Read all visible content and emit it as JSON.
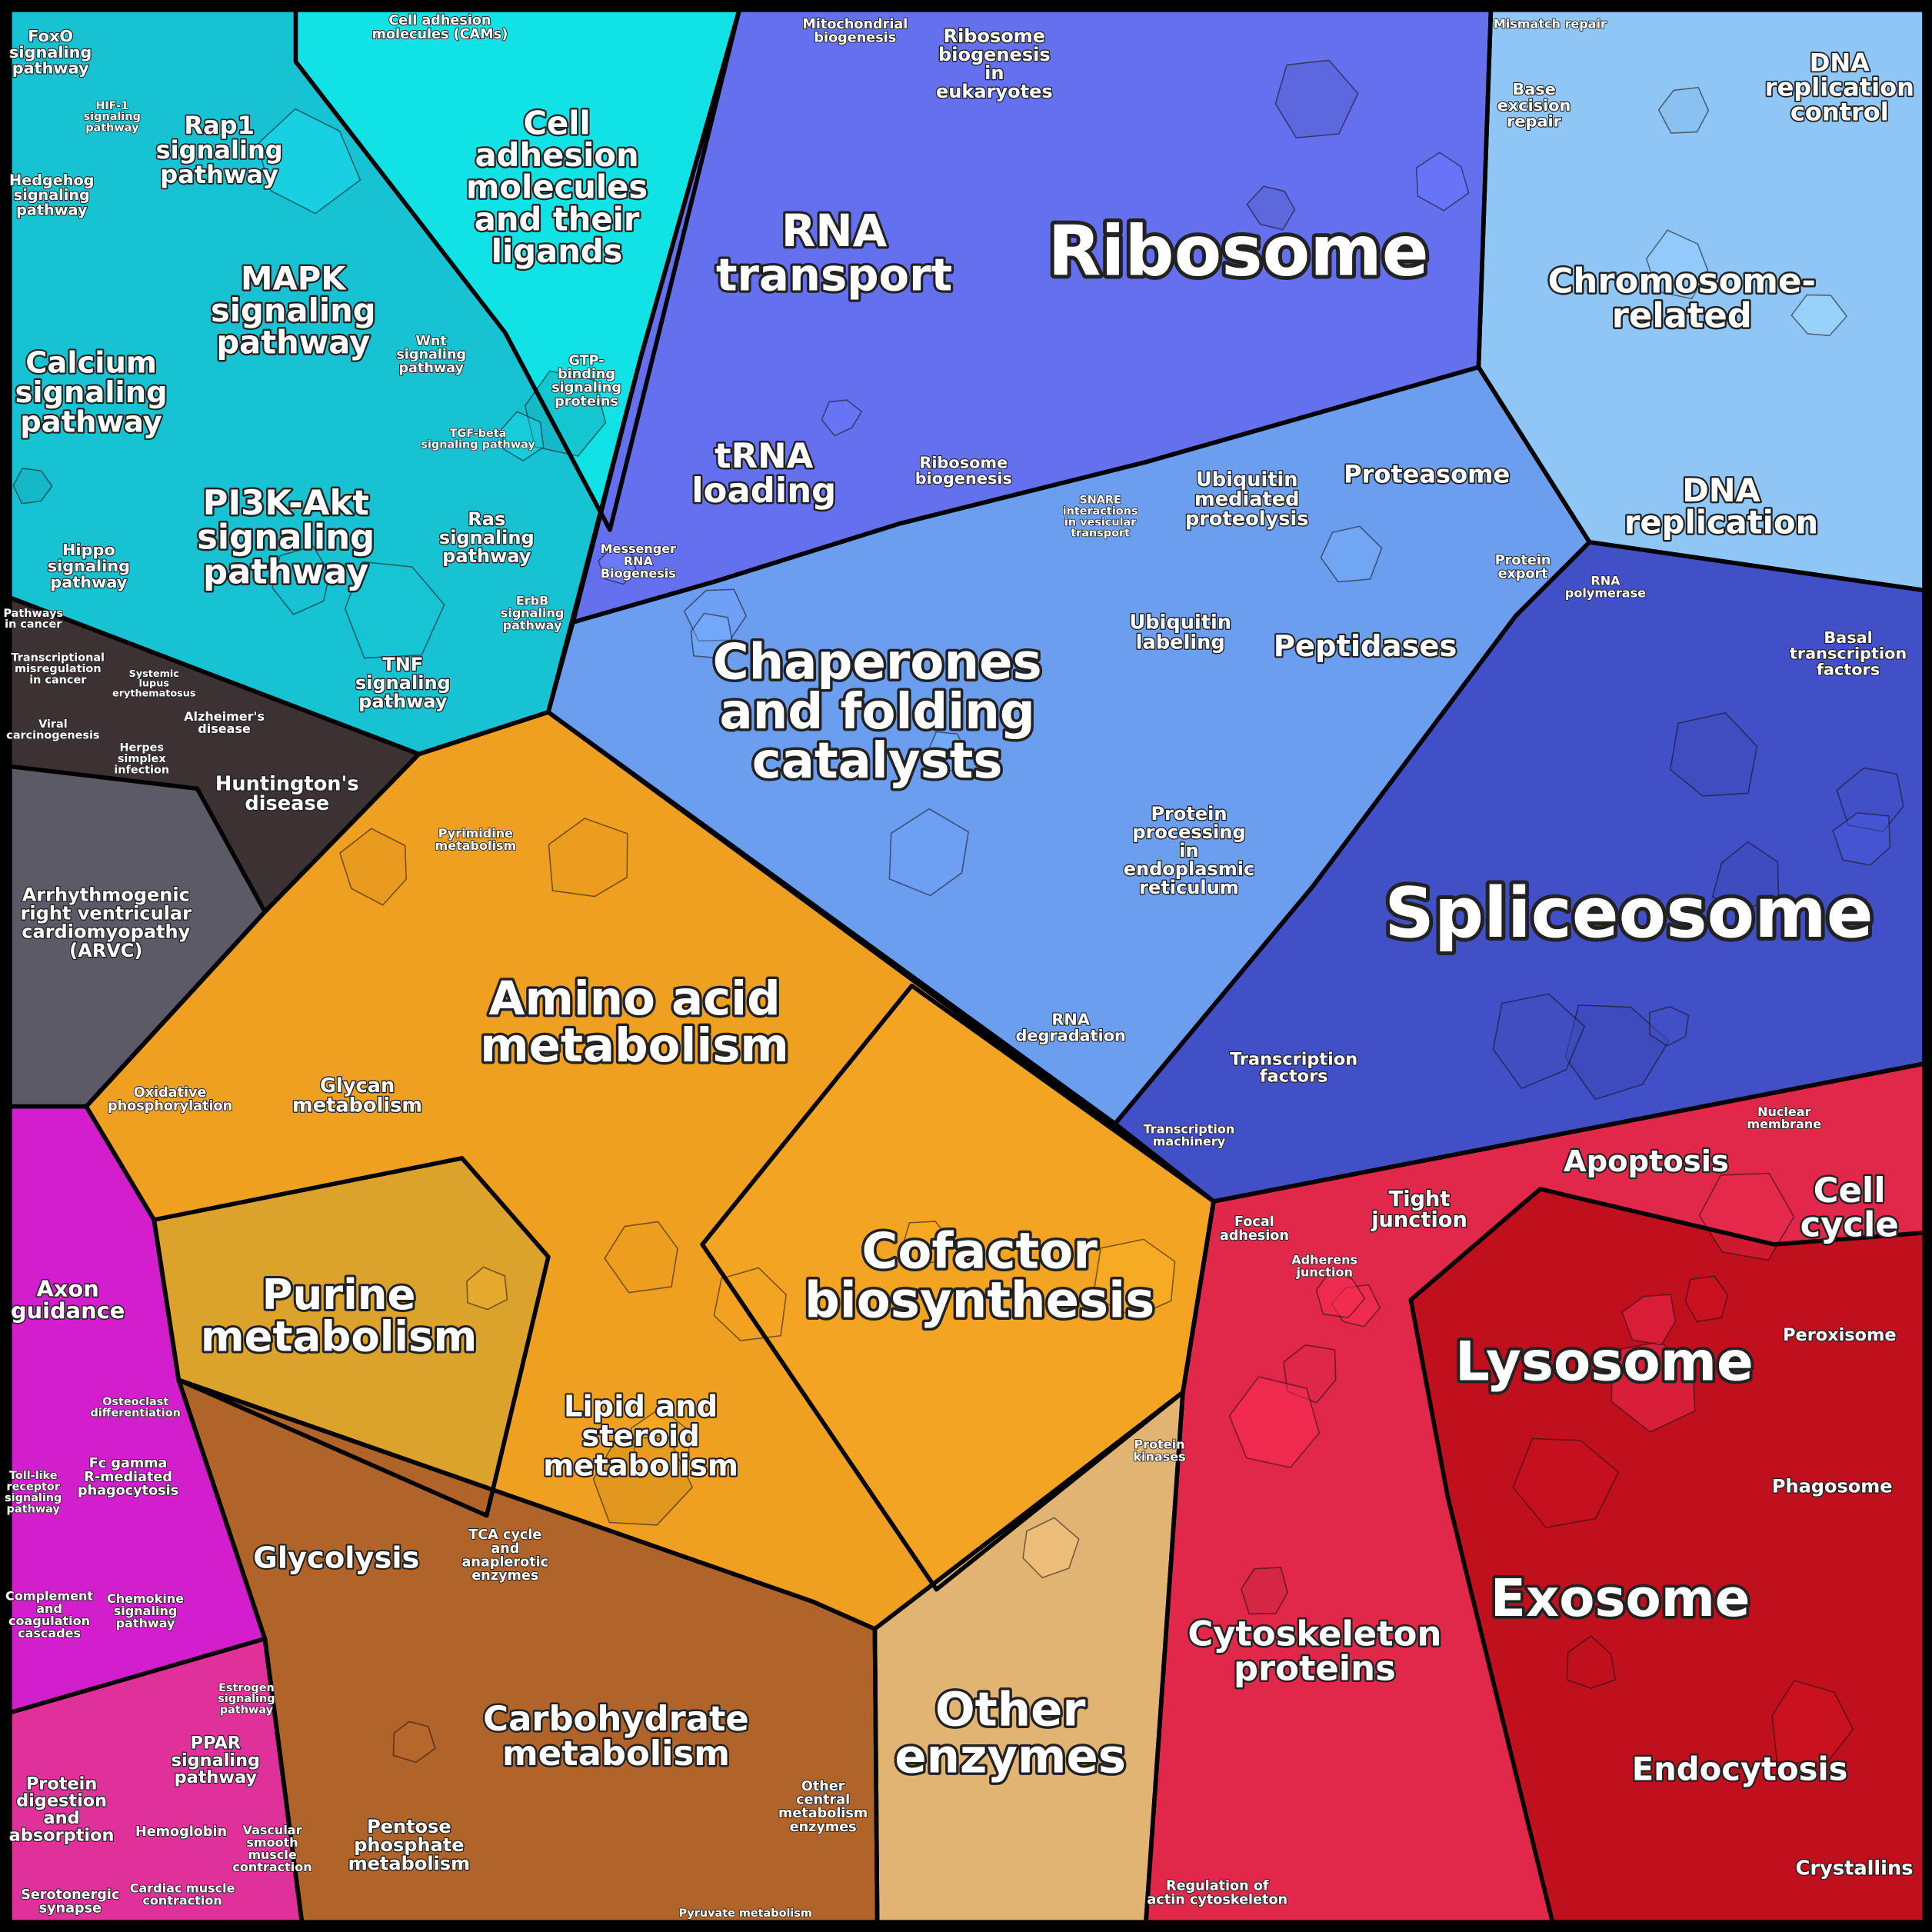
{
  "labels": [
    {
      "lines": [
        "Ribosome"
      ]
    },
    {
      "lines": [
        "Spliceosome"
      ]
    },
    {
      "lines": [
        "RNA",
        "transport"
      ]
    },
    {
      "lines": [
        "tRNA",
        "loading"
      ]
    },
    {
      "lines": [
        "Chaperones",
        "and folding",
        "catalysts"
      ]
    },
    {
      "lines": [
        "Amino acid",
        "metabolism"
      ]
    },
    {
      "lines": [
        "Cofactor",
        "biosynthesis"
      ]
    },
    {
      "lines": [
        "Purine",
        "metabolism"
      ]
    },
    {
      "lines": [
        "Lipid and",
        "steroid",
        "metabolism"
      ]
    },
    {
      "lines": [
        "Glycolysis"
      ]
    },
    {
      "lines": [
        "Carbohydrate",
        "metabolism"
      ]
    },
    {
      "lines": [
        "Other",
        "enzymes"
      ]
    },
    {
      "lines": [
        "Cytoskeleton",
        "proteins"
      ]
    },
    {
      "lines": [
        "Lysosome"
      ]
    },
    {
      "lines": [
        "Exosome"
      ]
    },
    {
      "lines": [
        "Endocytosis"
      ]
    },
    {
      "lines": [
        "Chromosome-",
        "related"
      ]
    },
    {
      "lines": [
        "DNA",
        "replication"
      ]
    },
    {
      "lines": [
        "DNA",
        "replication",
        "control"
      ]
    },
    {
      "lines": [
        "Proteasome"
      ]
    },
    {
      "lines": [
        "Peptidases"
      ]
    },
    {
      "lines": [
        "Cell",
        "cycle"
      ]
    },
    {
      "lines": [
        "Apoptosis"
      ]
    },
    {
      "lines": [
        "MAPK",
        "signaling",
        "pathway"
      ]
    },
    {
      "lines": [
        "PI3K-Akt",
        "signaling",
        "pathway"
      ]
    },
    {
      "lines": [
        "Calcium",
        "signaling",
        "pathway"
      ]
    },
    {
      "lines": [
        "Cell",
        "adhesion",
        "molecules",
        "and their",
        "ligands"
      ]
    },
    {
      "lines": [
        "Rap1",
        "signaling",
        "pathway"
      ]
    },
    {
      "lines": [
        "Axon",
        "guidance"
      ]
    },
    {
      "lines": [
        "Huntington's",
        "disease"
      ]
    },
    {
      "lines": [
        "Arrhythmogenic",
        "right ventricular",
        "cardiomyopathy",
        "(ARVC)"
      ]
    },
    {
      "lines": [
        "Ubiquitin",
        "mediated",
        "proteolysis"
      ]
    },
    {
      "lines": [
        "Ubiquitin",
        "labeling"
      ]
    },
    {
      "lines": [
        "Protein",
        "processing",
        "in",
        "endoplasmic",
        "reticulum"
      ]
    },
    {
      "lines": [
        "Transcription",
        "factors"
      ]
    },
    {
      "lines": [
        "Crystallins"
      ]
    },
    {
      "lines": [
        "Phagosome"
      ]
    },
    {
      "lines": [
        "Peroxisome"
      ]
    },
    {
      "lines": [
        "Tight",
        "junction"
      ]
    },
    {
      "lines": [
        "Protein",
        "digestion",
        "and",
        "absorption"
      ]
    },
    {
      "lines": [
        "PPAR",
        "signaling",
        "pathway"
      ]
    },
    {
      "lines": [
        "Pentose",
        "phosphate",
        "metabolism"
      ]
    },
    {
      "lines": [
        "Glycan",
        "metabolism"
      ]
    },
    {
      "lines": [
        "TNF",
        "signaling",
        "pathway"
      ]
    },
    {
      "lines": [
        "Ras",
        "signaling",
        "pathway"
      ]
    },
    {
      "lines": [
        "Hippo",
        "signaling",
        "pathway"
      ]
    },
    {
      "lines": [
        "Mitochondrial",
        "biogenesis"
      ]
    },
    {
      "lines": [
        "Ribosome",
        "biogenesis",
        "in",
        "eukaryotes"
      ]
    },
    {
      "lines": [
        "Basal",
        "transcription",
        "factors"
      ]
    },
    {
      "lines": [
        "Ribosome",
        "biogenesis"
      ]
    },
    {
      "lines": [
        "RNA",
        "degradation"
      ]
    },
    {
      "lines": [
        "Other",
        "central",
        "metabolism",
        "enzymes"
      ]
    },
    {
      "lines": [
        "Oxidative",
        "phosphorylation"
      ]
    },
    {
      "lines": [
        "Pyrimidine",
        "metabolism"
      ]
    },
    {
      "lines": [
        "TCA cycle",
        "and",
        "anaplerotic",
        "enzymes"
      ]
    },
    {
      "lines": [
        "Base",
        "excision",
        "repair"
      ]
    },
    {
      "lines": [
        "Fc gamma",
        "R-mediated",
        "phagocytosis"
      ]
    },
    {
      "lines": [
        "Complement",
        "and",
        "coagulation",
        "cascades"
      ]
    },
    {
      "lines": [
        "Serotonergic",
        "synapse"
      ]
    },
    {
      "lines": [
        "Hemoglobin"
      ]
    },
    {
      "lines": [
        "Vascular",
        "smooth",
        "muscle",
        "contraction"
      ]
    },
    {
      "lines": [
        "Cardiac muscle",
        "contraction"
      ]
    },
    {
      "lines": [
        "FoxO",
        "signaling",
        "pathway"
      ]
    },
    {
      "lines": [
        "Hedgehog",
        "signaling",
        "pathway"
      ]
    },
    {
      "lines": [
        "Wnt",
        "signaling",
        "pathway"
      ]
    },
    {
      "lines": [
        "GTP-",
        "binding",
        "signaling",
        "proteins"
      ]
    },
    {
      "lines": [
        "Protein",
        "kinases"
      ]
    },
    {
      "lines": [
        "Regulation of",
        "actin cytoskeleton"
      ]
    },
    {
      "lines": [
        "Focal",
        "adhesion"
      ]
    },
    {
      "lines": [
        "Transcription",
        "machinery"
      ]
    },
    {
      "lines": [
        "Nuclear",
        "membrane"
      ]
    },
    {
      "lines": [
        "Messenger",
        "RNA",
        "Biogenesis"
      ]
    },
    {
      "lines": [
        "SNARE",
        "interactions",
        "in vesicular",
        "transport"
      ]
    },
    {
      "lines": [
        "Protein",
        "export"
      ]
    },
    {
      "lines": [
        "RNA",
        "polymerase"
      ]
    },
    {
      "lines": [
        "Viral",
        "carcinogenesis"
      ]
    },
    {
      "lines": [
        "Alzheimer's",
        "disease"
      ]
    },
    {
      "lines": [
        "Pathways",
        "in cancer"
      ]
    },
    {
      "lines": [
        "Transcriptional",
        "misregulation",
        "in cancer"
      ]
    },
    {
      "lines": [
        "Cell adhesion",
        "molecules (CAMs)"
      ]
    },
    {
      "lines": [
        "Mismatch repair"
      ]
    },
    {
      "lines": [
        "Adherens",
        "junction"
      ]
    },
    {
      "lines": [
        "Osteoclast",
        "differentiation"
      ]
    },
    {
      "lines": [
        "Chemokine",
        "signaling",
        "pathway"
      ]
    },
    {
      "lines": [
        "Estrogen",
        "signaling",
        "pathway"
      ]
    },
    {
      "lines": [
        "Toll-like",
        "receptor",
        "signaling",
        "pathway"
      ]
    },
    {
      "lines": [
        "Pyruvate metabolism"
      ]
    },
    {
      "lines": [
        "Herpes",
        "simplex",
        "infection"
      ]
    },
    {
      "lines": [
        "Systemic",
        "lupus",
        "erythematosus"
      ]
    },
    {
      "lines": [
        "HIF-1",
        "signaling",
        "pathway"
      ]
    },
    {
      "lines": [
        "TGF-beta",
        "signaling pathway"
      ]
    },
    {
      "lines": [
        "ErbB",
        "signaling",
        "pathway"
      ]
    }
  ]
}
